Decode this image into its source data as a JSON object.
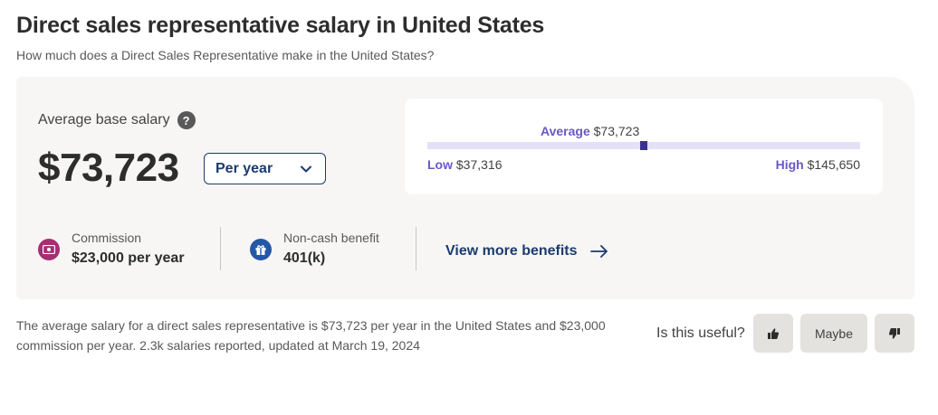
{
  "header": {
    "title": "Direct sales representative salary in United States",
    "subtitle": "How much does a Direct Sales Representative make in the United States?"
  },
  "summary": {
    "avg_label": "Average base salary",
    "help_icon": "?",
    "salary": "$73,723",
    "period": "Per year"
  },
  "range": {
    "avg_label": "Average",
    "avg_value": "$73,723",
    "low_label": "Low",
    "low_value": "$37,316",
    "high_label": "High",
    "high_value": "$145,650",
    "low_num": 37316,
    "avg_num": 73723,
    "high_num": 145650
  },
  "benefits": [
    {
      "label": "Commission",
      "value": "$23,000 per year",
      "icon": "money-icon",
      "color": "#a82e73"
    },
    {
      "label": "Non-cash benefit",
      "value": "401(k)",
      "icon": "gift-icon",
      "color": "#2557a7"
    }
  ],
  "more_benefits": "View more benefits",
  "footnote": "The average salary for a direct sales representative is $73,723 per year in the United States and $23,000 commission per year. 2.3k salaries reported, updated at March 19, 2024",
  "feedback": {
    "question": "Is this useful?",
    "maybe": "Maybe"
  },
  "colors": {
    "accent": "#6b57c8",
    "link": "#1d3b6e"
  }
}
